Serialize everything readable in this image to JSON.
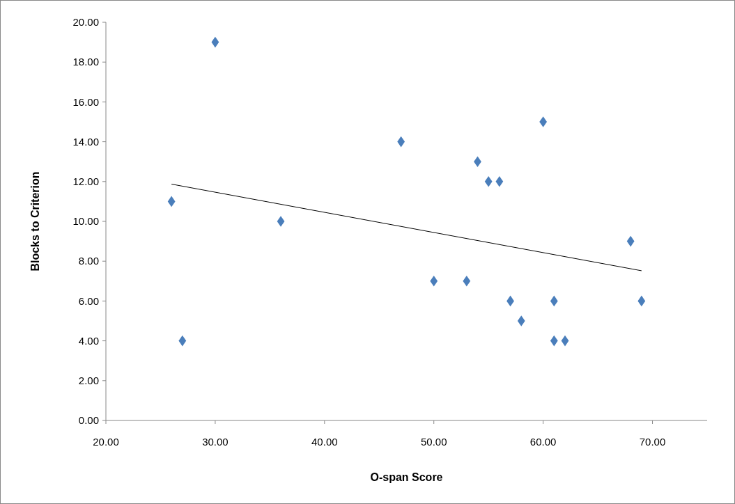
{
  "chart_data": {
    "type": "scatter",
    "xlabel": "O-span Score",
    "ylabel": "Blocks to Criterion",
    "xlim": [
      20,
      75
    ],
    "ylim": [
      0,
      20
    ],
    "xticks": [
      {
        "value": 20,
        "label": "20.00"
      },
      {
        "value": 30,
        "label": "30.00"
      },
      {
        "value": 40,
        "label": "40.00"
      },
      {
        "value": 50,
        "label": "50.00"
      },
      {
        "value": 60,
        "label": "60.00"
      },
      {
        "value": 70,
        "label": "70.00"
      }
    ],
    "yticks": [
      {
        "value": 0,
        "label": "0.00"
      },
      {
        "value": 2,
        "label": "2.00"
      },
      {
        "value": 4,
        "label": "4.00"
      },
      {
        "value": 6,
        "label": "6.00"
      },
      {
        "value": 8,
        "label": "8.00"
      },
      {
        "value": 10,
        "label": "10.00"
      },
      {
        "value": 12,
        "label": "12.00"
      },
      {
        "value": 14,
        "label": "14.00"
      },
      {
        "value": 16,
        "label": "16.00"
      },
      {
        "value": 18,
        "label": "18.00"
      },
      {
        "value": 20,
        "label": "20.00"
      }
    ],
    "grid": false,
    "series": [
      {
        "marker": "diamond",
        "color": "#4a7ebb",
        "x": [
          26,
          27,
          30,
          36,
          47,
          50,
          53,
          54,
          55,
          56,
          57,
          58,
          60,
          61,
          61,
          62,
          68,
          69
        ],
        "values": [
          11,
          4,
          19,
          10,
          14,
          7,
          7,
          13,
          12,
          12,
          6,
          5,
          15,
          6,
          4,
          4,
          9,
          6
        ]
      },
      {
        "type": "line",
        "marker": "none",
        "color": "#000000",
        "x": [
          26,
          69
        ],
        "values": [
          11.87,
          7.52
        ]
      }
    ]
  }
}
